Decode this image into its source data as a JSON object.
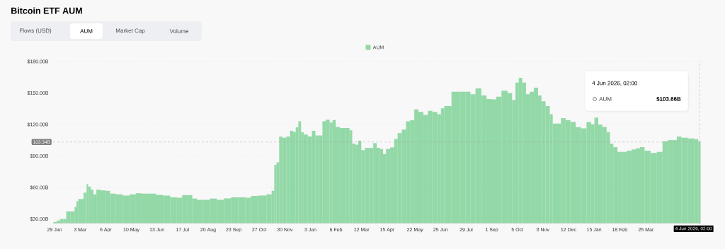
{
  "chart_data": {
    "type": "bar",
    "title": "Bitcoin ETF AUM",
    "annotations": [
      "Flows (USD)",
      "AUM",
      "Market Cap",
      "Volume",
      "4 Jun 2026, 02:00",
      "$103.66B"
    ],
    "legend": "top",
    "grid": "y",
    "xlim": [
      "2024-01-27",
      "2026-06-06"
    ],
    "ylim": [
      26,
      180
    ],
    "yticks": [
      {
        "value": 30,
        "label": "$30.00B"
      },
      {
        "value": 60,
        "label": "$60.00B"
      },
      {
        "value": 90,
        "label": "$90.00B"
      },
      {
        "value": 120,
        "label": "$120.00B"
      },
      {
        "value": 150,
        "label": "$150.00B"
      },
      {
        "value": 180,
        "label": "$180.00B"
      }
    ],
    "xticks": [
      {
        "value": "2024-01-29",
        "label": "29 Jan"
      },
      {
        "value": "2024-03-03",
        "label": "3 Mar"
      },
      {
        "value": "2024-04-06",
        "label": "6 Apr"
      },
      {
        "value": "2024-05-10",
        "label": "10 May"
      },
      {
        "value": "2024-06-13",
        "label": "13 Jun"
      },
      {
        "value": "2024-07-17",
        "label": "17 Jul"
      },
      {
        "value": "2024-08-20",
        "label": "20 Aug"
      },
      {
        "value": "2024-09-23",
        "label": "23 Sep"
      },
      {
        "value": "2024-10-27",
        "label": "27 Oct"
      },
      {
        "value": "2024-11-30",
        "label": "30 Nov"
      },
      {
        "value": "2025-01-03",
        "label": "3 Jan"
      },
      {
        "value": "2025-02-06",
        "label": "6 Feb"
      },
      {
        "value": "2025-03-12",
        "label": "12 Mar"
      },
      {
        "value": "2025-04-15",
        "label": "15 Apr"
      },
      {
        "value": "2025-05-22",
        "label": "22 May"
      },
      {
        "value": "2025-06-25",
        "label": "25 Jun"
      },
      {
        "value": "2025-07-29",
        "label": "29 Jul"
      },
      {
        "value": "2025-09-01",
        "label": "1 Sep"
      },
      {
        "value": "2025-10-05",
        "label": "5 Oct"
      },
      {
        "value": "2025-11-08",
        "label": "8 Nov"
      },
      {
        "value": "2025-12-12",
        "label": "12 Dec"
      },
      {
        "value": "2026-01-15",
        "label": "15 Jan"
      },
      {
        "value": "2026-02-18",
        "label": "18 Feb"
      },
      {
        "value": "2026-03-25",
        "label": "25 Mar"
      }
    ],
    "ref_lines": [
      {
        "axis": "y",
        "value": 103.34,
        "label": "103.34B",
        "line_style": "dashed"
      },
      {
        "axis": "x",
        "value": "2026-06-04",
        "label": "4 Jun 2026, 02:00",
        "line_style": "dashed"
      }
    ],
    "x": [
      "2024-01-29",
      "2024-02-04",
      "2024-02-07",
      "2024-02-12",
      "2024-02-15",
      "2024-02-23",
      "2024-02-26",
      "2024-02-28",
      "2024-03-02",
      "2024-03-07",
      "2024-03-08",
      "2024-03-11",
      "2024-03-12",
      "2024-03-15",
      "2024-03-19",
      "2024-03-22",
      "2024-03-27",
      "2024-04-02",
      "2024-04-08",
      "2024-04-15",
      "2024-04-24",
      "2024-05-03",
      "2024-05-13",
      "2024-05-19",
      "2024-05-28",
      "2024-06-07",
      "2024-06-16",
      "2024-06-26",
      "2024-07-05",
      "2024-07-14",
      "2024-07-19",
      "2024-07-27",
      "2024-08-02",
      "2024-08-08",
      "2024-08-18",
      "2024-08-27",
      "2024-09-05",
      "2024-09-15",
      "2024-09-24",
      "2024-10-04",
      "2024-10-13",
      "2024-10-19",
      "2024-11-01",
      "2024-11-10",
      "2024-11-15",
      "2024-11-17",
      "2024-11-21",
      "2024-11-24",
      "2024-11-29",
      "2024-12-05",
      "2024-12-09",
      "2024-12-13",
      "2024-12-16",
      "2024-12-20",
      "2024-12-23",
      "2024-12-27",
      "2025-01-03",
      "2025-01-07",
      "2025-01-12",
      "2025-01-17",
      "2025-01-21",
      "2025-01-26",
      "2025-01-31",
      "2025-02-03",
      "2025-02-08",
      "2025-02-14",
      "2025-02-22",
      "2025-02-26",
      "2025-03-01",
      "2025-03-06",
      "2025-03-09",
      "2025-03-14",
      "2025-03-19",
      "2025-03-25",
      "2025-03-30",
      "2025-04-03",
      "2025-04-08",
      "2025-04-11",
      "2025-04-16",
      "2025-04-22",
      "2025-04-27",
      "2025-05-01",
      "2025-05-08",
      "2025-05-12",
      "2025-05-19",
      "2025-05-23",
      "2025-05-30",
      "2025-06-05",
      "2025-06-11",
      "2025-06-17",
      "2025-06-24",
      "2025-06-27",
      "2025-07-03",
      "2025-07-16",
      "2025-07-25",
      "2025-07-31",
      "2025-08-07",
      "2025-08-14",
      "2025-08-22",
      "2025-08-28",
      "2025-09-04",
      "2025-09-10",
      "2025-09-18",
      "2025-09-26",
      "2025-09-30",
      "2025-10-05",
      "2025-10-09",
      "2025-10-14",
      "2025-10-19",
      "2025-10-24",
      "2025-10-30",
      "2025-11-04",
      "2025-11-08",
      "2025-11-15",
      "2025-11-19",
      "2025-11-23",
      "2025-11-29",
      "2025-12-05",
      "2025-12-11",
      "2025-12-18",
      "2025-12-25",
      "2026-01-01",
      "2026-01-09",
      "2026-01-13",
      "2026-01-18",
      "2026-01-23",
      "2026-01-29",
      "2026-02-03",
      "2026-02-07",
      "2026-02-12",
      "2026-02-18",
      "2026-02-24",
      "2026-03-03",
      "2026-03-09",
      "2026-03-14",
      "2026-03-20",
      "2026-03-26",
      "2026-04-05",
      "2026-04-12",
      "2026-04-20",
      "2026-04-26",
      "2026-05-03",
      "2026-05-07",
      "2026-05-15",
      "2026-05-24",
      "2026-06-01",
      "2026-06-04"
    ],
    "series": [
      {
        "name": "AUM",
        "color": "#93d9a7",
        "values": [
          27.1,
          28.5,
          30.0,
          30.0,
          37.2,
          37.2,
          41.2,
          46.8,
          49.0,
          49.0,
          55.0,
          55.0,
          63.1,
          60.8,
          57.9,
          53.4,
          57.9,
          57.2,
          56.8,
          54.1,
          53.4,
          52.3,
          53.4,
          54.5,
          54.1,
          54.1,
          52.9,
          52.3,
          50.6,
          50.2,
          52.7,
          52.7,
          49.4,
          48.2,
          48.2,
          49.4,
          48.2,
          49.6,
          50.6,
          50.6,
          50.2,
          51.9,
          52.3,
          53.4,
          56.8,
          81.6,
          83.9,
          108.5,
          107.4,
          108.5,
          114.0,
          112.9,
          117.3,
          123.0,
          112.6,
          110.4,
          108.6,
          114.0,
          109.5,
          109.5,
          123.0,
          124.6,
          121.9,
          124.2,
          117.7,
          116.6,
          116.6,
          114.4,
          101.8,
          100.7,
          104.5,
          95.5,
          97.7,
          97.7,
          102.2,
          97.7,
          96.6,
          91.7,
          96.6,
          98.2,
          106.2,
          111.8,
          115.1,
          123.0,
          124.1,
          134.3,
          132.0,
          129.1,
          133.0,
          132.0,
          129.8,
          135.4,
          137.6,
          151.1,
          151.1,
          151.1,
          148.8,
          154.4,
          147.7,
          144.3,
          143.9,
          146.5,
          152.2,
          150.0,
          143.2,
          160.0,
          164.5,
          160.0,
          148.8,
          151.1,
          155.1,
          147.7,
          142.1,
          137.6,
          129.7,
          120.8,
          120.8,
          126.0,
          124.2,
          122.4,
          117.4,
          116.3,
          122.4,
          120.2,
          126.5,
          119.8,
          117.6,
          112.9,
          101.8,
          98.4,
          93.9,
          93.9,
          95.0,
          96.2,
          97.3,
          98.4,
          95.0,
          92.8,
          93.9,
          104.0,
          105.1,
          105.1,
          108.5,
          107.4,
          106.7,
          106.0,
          103.66
        ]
      }
    ]
  }
}
